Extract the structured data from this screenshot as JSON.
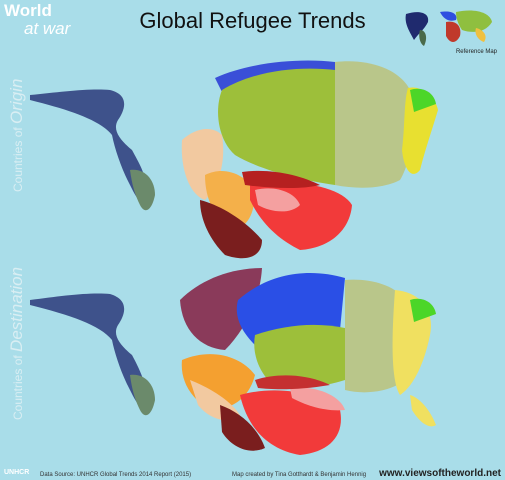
{
  "branding": {
    "line1": "World",
    "line2": "at war"
  },
  "title": "Global Refugee Trends",
  "side_labels": {
    "origin_small": "Countries of",
    "origin_big": "Origin",
    "destination_small": "Countries of",
    "destination_big": "Destination"
  },
  "reference_map_label": "Reference Map",
  "footer": {
    "source": "Data Source: UNHCR Global Trends 2014 Report (2015)",
    "credit": "Map created by Tina Gotthardt & Benjamin Hennig",
    "url": "www.viewsoftheworld.net",
    "logo": "UNHCR"
  },
  "colors": {
    "ocean": "#a9dde9",
    "americas": "#1f2a6e",
    "africa": "#8fbf3f",
    "middle_east": "#c0392b",
    "europe": "#2f4fe0",
    "asia": "#f0c040"
  }
}
